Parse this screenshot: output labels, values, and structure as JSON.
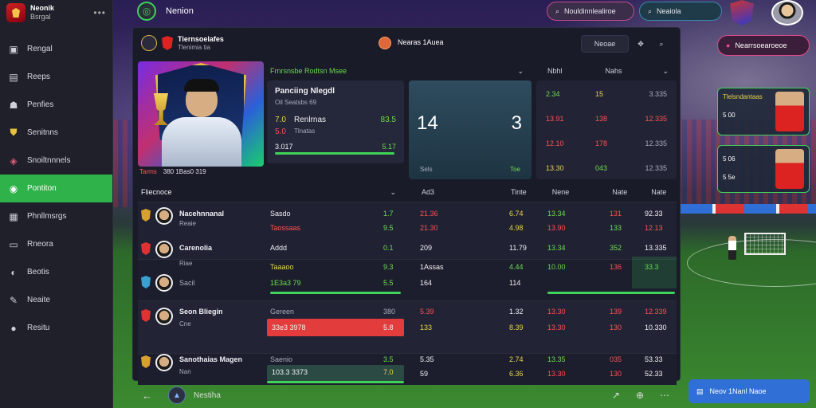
{
  "brand": {
    "title": "Neonik",
    "subtitle": "Bsrgal",
    "menu_icon": "dots-icon"
  },
  "sidebar": {
    "items": [
      {
        "label": "Rengal",
        "icon": "box-icon"
      },
      {
        "label": "Reeps",
        "icon": "bookmark-icon"
      },
      {
        "label": "Penfies",
        "icon": "users-icon"
      },
      {
        "label": "Senitnns",
        "icon": "shield-icon"
      },
      {
        "label": "Snoiltnnnels",
        "icon": "stack-icon"
      },
      {
        "label": "Pontiton",
        "icon": "flag-icon",
        "active": true
      },
      {
        "label": "Phnllmsrgs",
        "icon": "list-icon"
      },
      {
        "label": "Rneora",
        "icon": "monitor-icon"
      },
      {
        "label": "Beotis",
        "icon": "globe-icon"
      },
      {
        "label": "Neaite",
        "icon": "pen-icon"
      },
      {
        "label": "Resitu",
        "icon": "info-icon"
      }
    ]
  },
  "topbar": {
    "title": "Nenion",
    "search1": "Nouldinnlealiroe",
    "search2": "Neaiola"
  },
  "panel": {
    "team_name": "Tiernsoelafes",
    "team_sub": "Tlenimia  tia",
    "match_label": "Nearas  1Auea",
    "btn_label": "Neoae",
    "hero_caption_a": "Tarms",
    "hero_caption_b": "380 1Bas0 319",
    "col_stats_head": "Frnrsnsbe Rodtsn Msee",
    "col_score_head": "",
    "col_odds_a": "Nbhl",
    "col_odds_b": "Nahs",
    "stat_title": "Panciing Nlegdl",
    "stat_sub": "Oil Seatsbs 69",
    "stat_row1_a": "7.0",
    "stat_row1_b": "Renlrnas",
    "stat_row1_c": "83.5",
    "stat_row2_a": "5.0",
    "stat_row2_b": "Tlnatas",
    "stat_row3_a": "3.017",
    "stat_row3_c": "5.17",
    "score_left": "14",
    "score_right": "3",
    "score_foot_left": "Sels",
    "score_foot_right": "Toe",
    "odds": [
      [
        "2.34",
        "15",
        "3.335"
      ],
      [
        "13.91",
        "138",
        "12.335"
      ],
      [
        "12.10",
        "178",
        "12.335"
      ],
      [
        "13.30",
        "043",
        "12.335"
      ]
    ],
    "list_head": "Fliecnoce",
    "list_cols": [
      "Ad3",
      "Tinte",
      "Nene",
      "Nate",
      "Nate"
    ],
    "rows": [
      {
        "name": "Nacehnnanal",
        "sub": "Reaie",
        "c1": "Sasdo",
        "c1b": "Taossaas",
        "v1": "1.7",
        "v1b": "9.5",
        "o1": "21.36",
        "o1b": "21.30",
        "o2": "6.74",
        "o2b": "4.98",
        "p1": "13.34",
        "p1b": "13.90",
        "p2": "131",
        "p2b": "133",
        "p3": "92.33",
        "p3b": "12.13"
      },
      {
        "name": "Carenolia",
        "sub": "Riae",
        "c1": "Addd",
        "c1b": "Taaaoo",
        "v1": "0.1",
        "v1b": "9.3",
        "o1": "209",
        "o1b": "1Assas",
        "o2": "11.79",
        "o2b": "4.44",
        "p1": "13.34",
        "p1b": "10.00",
        "p2": "352",
        "p2b": "136",
        "p3": "13.335",
        "p3b": "33.3"
      },
      {
        "name": "Sacil",
        "sub": "",
        "c1": "1E3a3 79",
        "c1b": "",
        "v1": "5.5",
        "v1b": "",
        "o1": "164",
        "o1b": "",
        "o2": "114",
        "o2b": "",
        "p1": "",
        "p1b": "",
        "p2": "",
        "p2b": "",
        "p3": "",
        "p3b": ""
      },
      {
        "name": "Seon Bliegin",
        "sub": "Cne",
        "c1": "Gereen",
        "c1b": "33e3 3978",
        "v1": "380",
        "v1b": "5.8",
        "o1": "5.39",
        "o1b": "133",
        "o2": "1.32",
        "o2b": "8.39",
        "p1": "13.30",
        "p1b": "13.30",
        "p2": "139",
        "p2b": "130",
        "p3": "12.339",
        "p3b": "10.330"
      },
      {
        "name": "Sanothaias Magen",
        "sub": "Nan",
        "c1": "Saenio",
        "c1b": "103.3 3373",
        "v1": "3.5",
        "v1b": "7.0",
        "o1": "5.35",
        "o1b": "59",
        "o2": "2.74",
        "o2b": "6.36",
        "p1": "13.35",
        "p1b": "13.30",
        "p2": "035",
        "p2b": "130",
        "p3": "53.33",
        "p3b": "52.33"
      }
    ]
  },
  "bottom": {
    "label": "Nestiha"
  },
  "side": {
    "pill": "Nearrsoearoeoe",
    "card1_line1": "Tlelsndantaas",
    "card1_line2": "5 00",
    "card2_line1": "5 06",
    "card2_line2": "5 5e",
    "button": "Neov 1Nanl Naoe"
  }
}
